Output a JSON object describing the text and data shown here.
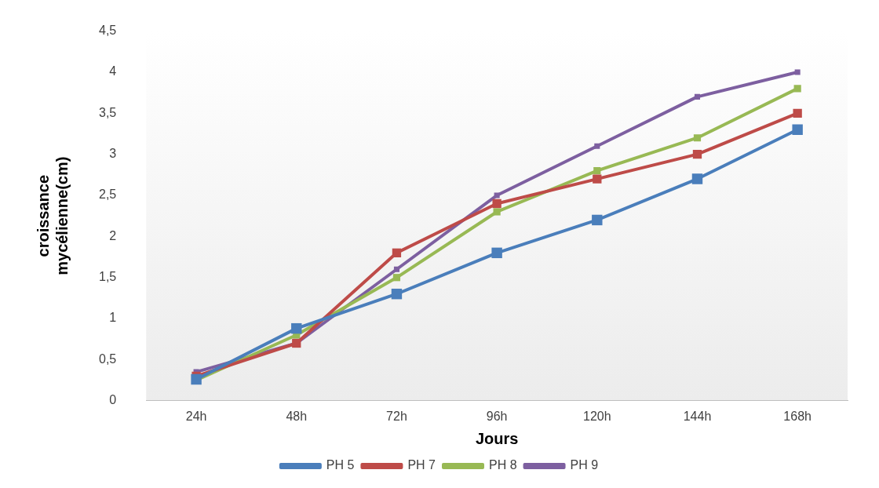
{
  "chart_data": {
    "type": "line",
    "xlabel": "Jours",
    "ylabel": "croissance mycélienne(cm)",
    "categories": [
      "24h",
      "48h",
      "72h",
      "96h",
      "120h",
      "144h",
      "168h"
    ],
    "series": [
      {
        "name": "PH 5",
        "color": "#4a7ebb",
        "values": [
          0.26,
          0.88,
          1.3,
          1.8,
          2.2,
          2.7,
          3.3
        ]
      },
      {
        "name": "PH 7",
        "color": "#be4b48",
        "values": [
          0.3,
          0.7,
          1.8,
          2.4,
          2.7,
          3.0,
          3.5
        ]
      },
      {
        "name": "PH 8",
        "color": "#98b954",
        "values": [
          0.25,
          0.8,
          1.5,
          2.3,
          2.8,
          3.2,
          3.8
        ]
      },
      {
        "name": "PH 9",
        "color": "#7d5fa0",
        "values": [
          0.35,
          0.7,
          1.6,
          2.5,
          3.1,
          3.7,
          4.0
        ]
      }
    ],
    "ylim": [
      0,
      4.5
    ],
    "yticks": [
      0,
      {
        "value": 0.5,
        "label": "0,5"
      },
      1,
      {
        "value": 1.5,
        "label": "1,5"
      },
      2,
      {
        "value": 2.5,
        "label": "2,5"
      },
      3,
      {
        "value": 3.5,
        "label": "3,5"
      },
      4,
      {
        "value": 4.5,
        "label": "4,5"
      }
    ],
    "grid": false,
    "legend": "bottom",
    "marker": "square",
    "line_style": "solid"
  }
}
